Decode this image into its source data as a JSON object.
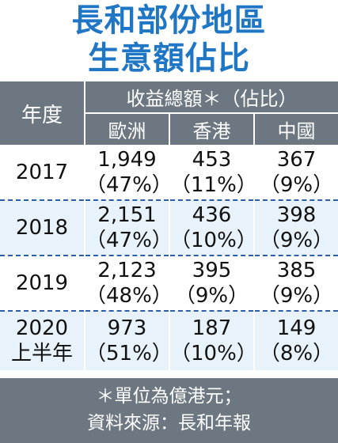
{
  "chart_data": {
    "type": "table",
    "title": "長和部份地區",
    "subtitle": "生意額佔比",
    "header": {
      "year_label": "年度",
      "group_label": "收益總額＊（佔比）",
      "columns": [
        "歐洲",
        "香港",
        "中國"
      ]
    },
    "rows": [
      {
        "year": "2017",
        "year_note": "",
        "values": [
          "1,949",
          "453",
          "367"
        ],
        "shares": [
          "（47%）",
          "（11%）",
          "（9%）"
        ]
      },
      {
        "year": "2018",
        "year_note": "",
        "values": [
          "2,151",
          "436",
          "398"
        ],
        "shares": [
          "（47%）",
          "（10%）",
          "（9%）"
        ]
      },
      {
        "year": "2019",
        "year_note": "",
        "values": [
          "2,123",
          "395",
          "385"
        ],
        "shares": [
          "（48%）",
          "（9%）",
          "（9%）"
        ]
      },
      {
        "year": "2020",
        "year_note": "上半年",
        "values": [
          "973",
          "187",
          "149"
        ],
        "shares": [
          "（51%）",
          "（10%）",
          "（8%）"
        ]
      }
    ],
    "footnote": "＊單位為億港元；",
    "source": "資料來源：長和年報"
  },
  "colors": {
    "title": "#1f76c5",
    "header_bg": "#6d7782",
    "row_alt_bg": "#e8f2fa",
    "divider": "#2d5fa8"
  }
}
